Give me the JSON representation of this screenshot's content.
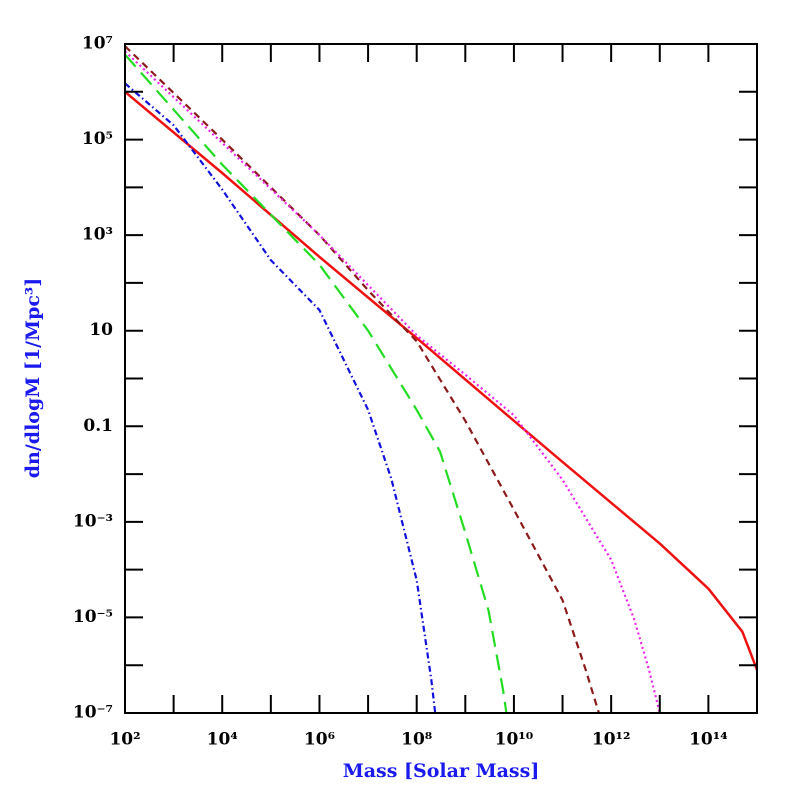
{
  "chart_data": {
    "type": "line",
    "xlabel": "Mass [Solar Mass]",
    "ylabel": "dn/dlogM [1/Mpc³]",
    "xscale": "log",
    "yscale": "log",
    "xlim": [
      100,
      1000000000000000.0
    ],
    "ylim": [
      1e-07,
      10000000.0
    ],
    "xticks": [
      {
        "value": 100,
        "label": "10²"
      },
      {
        "value": 10000,
        "label": "10⁴"
      },
      {
        "value": 1000000,
        "label": "10⁶"
      },
      {
        "value": 100000000,
        "label": "10⁸"
      },
      {
        "value": 10000000000,
        "label": "10¹⁰"
      },
      {
        "value": 1000000000000,
        "label": "10¹²"
      },
      {
        "value": 100000000000000,
        "label": "10¹⁴"
      }
    ],
    "xminorticks": [
      1000,
      100000,
      10000000,
      1000000000,
      100000000000,
      10000000000000
    ],
    "yticks": [
      {
        "value": 10000000.0,
        "label": "10⁷"
      },
      {
        "value": 100000,
        "label": "10⁵"
      },
      {
        "value": 1000,
        "label": "10³"
      },
      10,
      0.1,
      {
        "value": 0.001,
        "label": "10⁻³"
      },
      {
        "value": 1e-05,
        "label": "10⁻⁵"
      },
      {
        "value": 1e-07,
        "label": "10⁻⁷"
      }
    ],
    "yminorticks": [
      1000000,
      10000,
      100,
      1,
      0.01,
      0.0001,
      1e-06
    ],
    "series": [
      {
        "color": "#ee1111",
        "dash": "solid",
        "x": [
          100,
          10000,
          1000000,
          100000000,
          10000000000,
          100000000000,
          1000000000000,
          10000000000000,
          100000000000000,
          500000000000000,
          1000000000000000.0
        ],
        "values": [
          1000000,
          20000,
          350,
          7,
          0.13,
          0.018,
          0.0025,
          0.00035,
          4e-05,
          5e-06,
          8e-07
        ]
      },
      {
        "color": "#1111dd",
        "dash": "dashdot",
        "x": [
          100,
          1000,
          10000,
          100000,
          1000000,
          10000000,
          30000000,
          100000000,
          200000000,
          240000000
        ],
        "values": [
          1500000,
          200000,
          9000,
          300,
          27,
          0.22,
          0.008,
          6e-05,
          5e-07,
          1e-07
        ]
      },
      {
        "color": "#22dd22",
        "dash": "long",
        "x": [
          100,
          10000,
          1000000,
          10000000,
          100000000,
          300000000,
          1000000000,
          3000000000,
          6000000000,
          7000000000
        ],
        "values": [
          6000000,
          30000,
          240,
          10,
          0.22,
          0.03,
          0.0006,
          1.4e-05,
          3e-07,
          1e-07
        ]
      },
      {
        "color": "#8b1a1a",
        "dash": "short",
        "x": [
          100,
          10000,
          1000000,
          10000000,
          100000000,
          1000000000,
          10000000000,
          100000000000,
          300000000000,
          560000000000
        ],
        "values": [
          9000000,
          100000,
          1000,
          70,
          6,
          0.13,
          0.0018,
          2.3e-05,
          8e-07,
          1e-07
        ]
      },
      {
        "color": "#ee22ee",
        "dash": "dotted",
        "x": [
          100,
          10000,
          1000000,
          100000000,
          1000000000,
          10000000000,
          100000000000,
          1000000000000,
          3000000000000,
          6000000000000,
          10000000000000
        ],
        "values": [
          7000000,
          85000,
          1000,
          8,
          1.2,
          0.17,
          0.0076,
          0.00016,
          9e-06,
          8e-07,
          1e-07
        ]
      }
    ]
  }
}
